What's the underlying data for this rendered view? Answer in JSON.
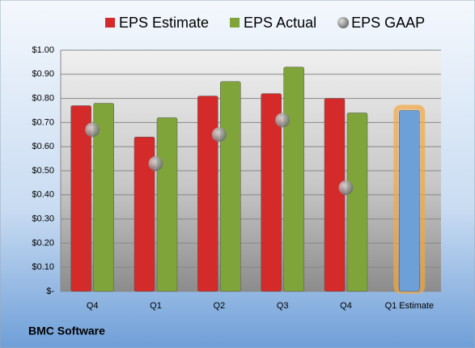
{
  "chart_data": {
    "type": "bar",
    "categories": [
      "Q4",
      "Q1",
      "Q2",
      "Q3",
      "Q4",
      "Q1 Estimate"
    ],
    "series": [
      {
        "name": "EPS Estimate",
        "color": "#d42a2a",
        "values": [
          0.77,
          0.64,
          0.81,
          0.82,
          0.8,
          0.75
        ]
      },
      {
        "name": "EPS Actual",
        "color": "#7fa43a",
        "values": [
          0.78,
          0.72,
          0.87,
          0.93,
          0.74,
          null
        ]
      },
      {
        "name": "EPS GAAP",
        "color": "#8a8a8a",
        "style": "marker",
        "values": [
          0.67,
          0.53,
          0.65,
          0.71,
          0.43,
          null
        ]
      }
    ],
    "forecast_color": "#6d9fd8",
    "ylim": [
      0,
      1
    ],
    "yticks": [
      {
        "value": 0,
        "label": "$-"
      },
      {
        "value": 0.1,
        "label": "$0.10"
      },
      {
        "value": 0.2,
        "label": "$0.20"
      },
      {
        "value": 0.3,
        "label": "$0.30"
      },
      {
        "value": 0.4,
        "label": "$0.40"
      },
      {
        "value": 0.5,
        "label": "$0.50"
      },
      {
        "value": 0.6,
        "label": "$0.60"
      },
      {
        "value": 0.7,
        "label": "$0.70"
      },
      {
        "value": 0.8,
        "label": "$0.80"
      },
      {
        "value": 0.9,
        "label": "$0.90"
      },
      {
        "value": 1,
        "label": "$1.00"
      }
    ],
    "grid": true,
    "legend": "top",
    "footer": "BMC Software"
  }
}
